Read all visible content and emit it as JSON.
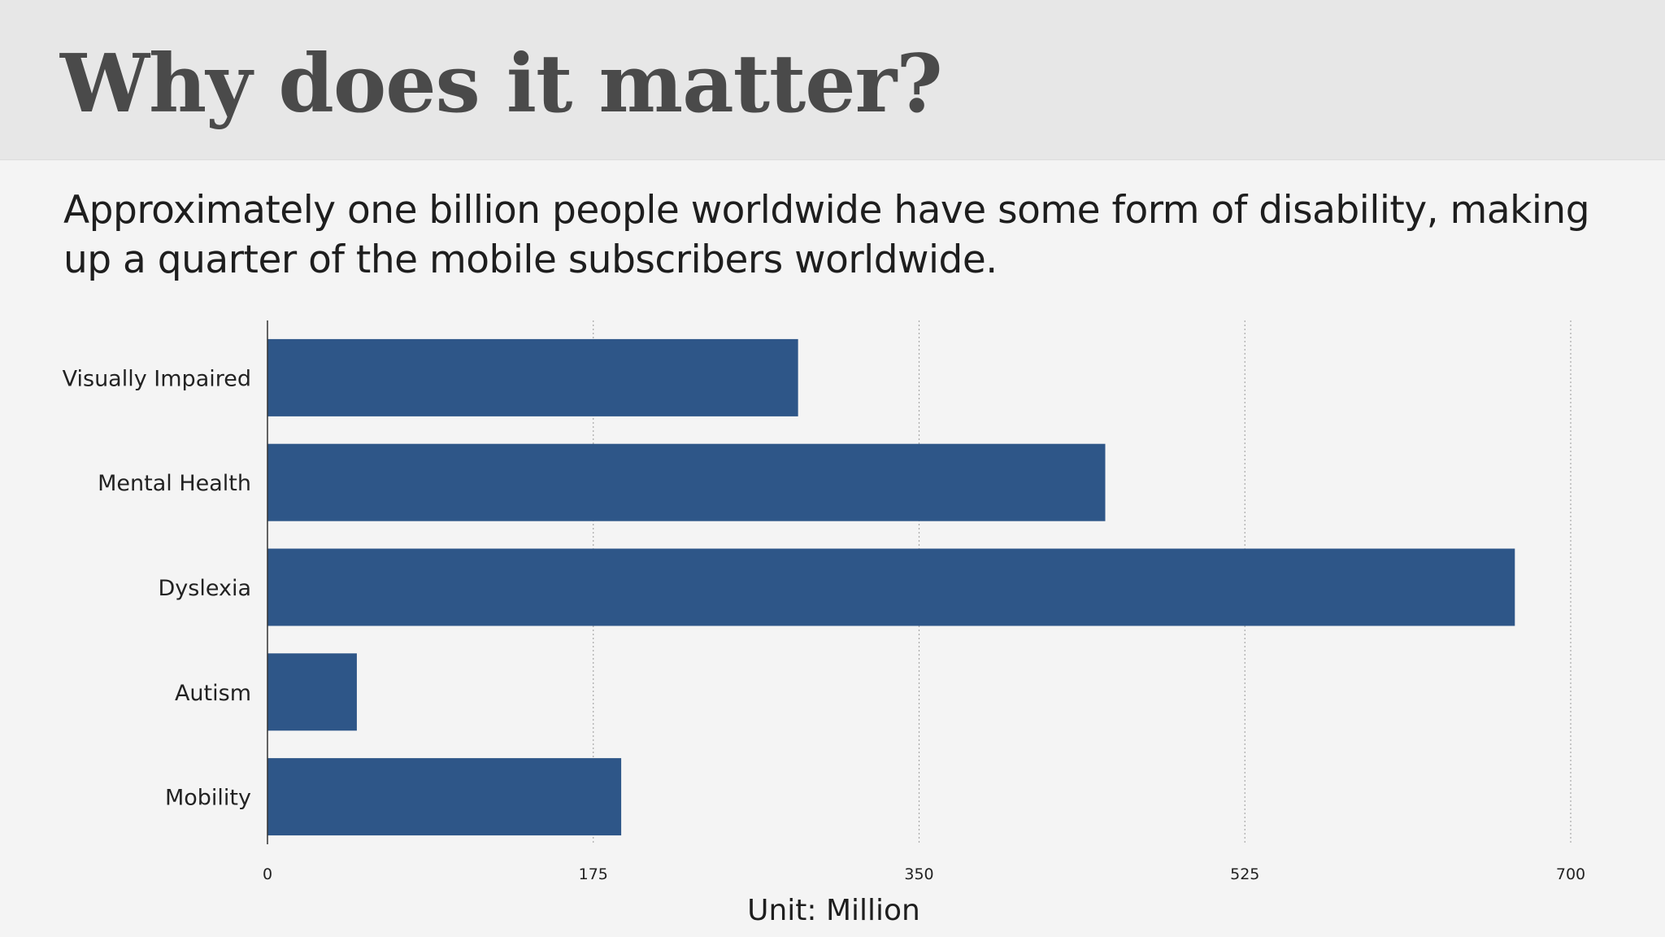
{
  "header": {
    "title": "Why does it matter?"
  },
  "subtitle": "Approximately one billion people worldwide have some form of disability, making up a quarter of the mobile subscribers worldwide.",
  "colors": {
    "bar": "#2e5688",
    "header_bg": "#e7e7e7",
    "page_bg": "#f4f4f4",
    "title": "#4a4a4a"
  },
  "chart_data": {
    "type": "bar",
    "orientation": "horizontal",
    "categories": [
      "Visually Impaired",
      "Mental Health",
      "Dyslexia",
      "Autism",
      "Mobility"
    ],
    "values": [
      285,
      450,
      670,
      48,
      190
    ],
    "xlim": [
      0,
      700
    ],
    "xticks": [
      "0",
      "175",
      "350",
      "525",
      "700"
    ],
    "xlabel": "Unit: Million",
    "ylabel": "",
    "grid": "vertical dotted"
  }
}
